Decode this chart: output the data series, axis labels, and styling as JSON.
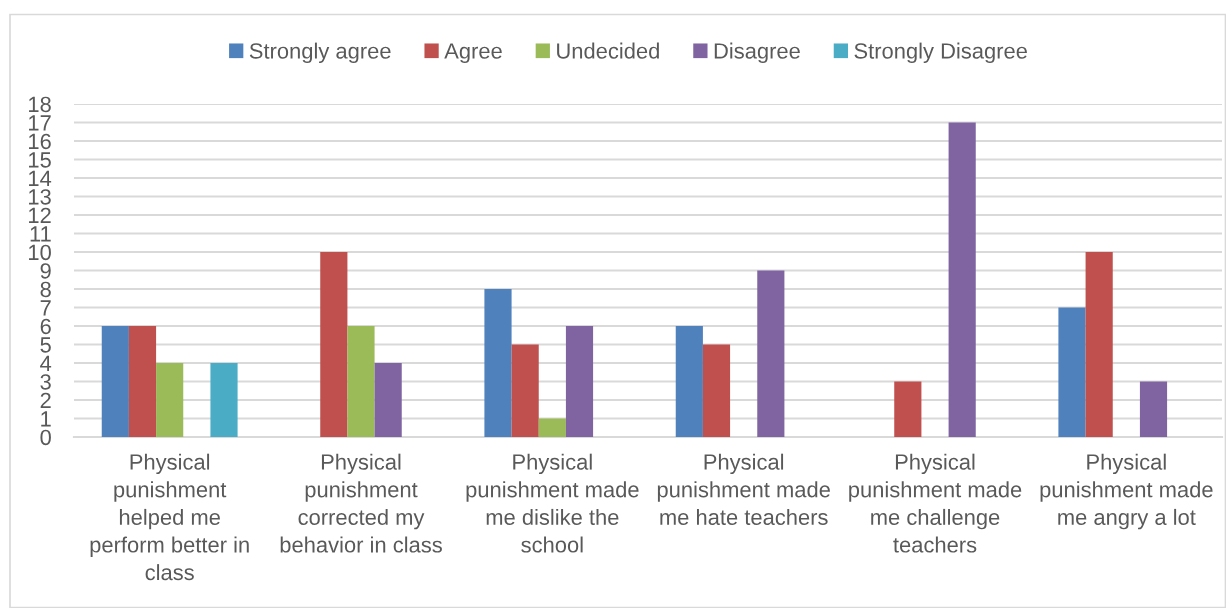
{
  "chart_data": {
    "type": "bar",
    "categories": [
      "Physical punishment helped me perform better in class",
      "Physical punishment corrected my behavior in class",
      "Physical punishment made me dislike the school",
      "Physical punishment made me hate teachers",
      "Physical punishment made me challenge teachers",
      "Physical punishment made me angry a lot"
    ],
    "series": [
      {
        "name": "Strongly agree",
        "color": "#4f81bd",
        "values": [
          6,
          null,
          8,
          6,
          null,
          7
        ]
      },
      {
        "name": "Agree",
        "color": "#c0504d",
        "values": [
          6,
          10,
          5,
          5,
          3,
          10
        ]
      },
      {
        "name": "Undecided",
        "color": "#9bbb59",
        "values": [
          4,
          6,
          1,
          null,
          null,
          null
        ]
      },
      {
        "name": "Disagree",
        "color": "#8064a2",
        "values": [
          null,
          4,
          6,
          9,
          17,
          3
        ]
      },
      {
        "name": "Strongly Disagree",
        "color": "#4bacc6",
        "values": [
          4,
          null,
          null,
          null,
          null,
          null
        ]
      }
    ],
    "ylim": [
      0,
      18
    ],
    "yticks": [
      0,
      1,
      2,
      3,
      4,
      5,
      6,
      7,
      8,
      9,
      10,
      11,
      12,
      13,
      14,
      15,
      16,
      17,
      18
    ],
    "grid": "y",
    "legend": "top"
  }
}
